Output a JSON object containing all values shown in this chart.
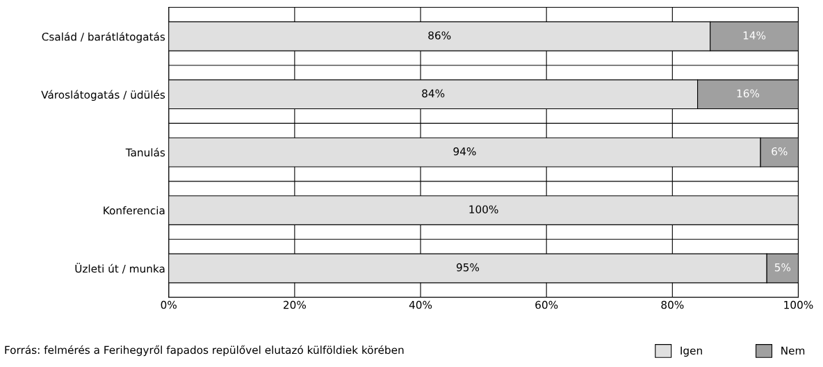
{
  "chart_data": {
    "type": "bar",
    "orientation": "horizontal",
    "stacked": true,
    "categories": [
      "Család / barátlátogatás",
      "Városlátogatás / üdülés",
      "Tanulás",
      "Konferencia",
      "Üzleti út / munka"
    ],
    "series": [
      {
        "name": "Igen",
        "color": "#e0e0e0",
        "values": [
          86,
          84,
          94,
          100,
          95
        ],
        "value_labels": [
          "86%",
          "84%",
          "94%",
          "100%",
          "95%"
        ]
      },
      {
        "name": "Nem",
        "color": "#a0a0a0",
        "values": [
          14,
          16,
          6,
          0,
          5
        ],
        "value_labels": [
          "14%",
          "16%",
          "6%",
          null,
          "5%"
        ]
      }
    ],
    "xlim": [
      0,
      100
    ],
    "xticks": [
      {
        "value": 0,
        "label": "0%"
      },
      {
        "value": 20,
        "label": "20%"
      },
      {
        "value": 40,
        "label": "40%"
      },
      {
        "value": 60,
        "label": "60%"
      },
      {
        "value": 80,
        "label": "80%"
      },
      {
        "value": 100,
        "label": "100%"
      }
    ],
    "grid": true,
    "legend": "bottom right",
    "annotations": [
      "Forrás: felmérés a Ferihegyről fapados repülővel elutazó külföldiek körében"
    ]
  }
}
